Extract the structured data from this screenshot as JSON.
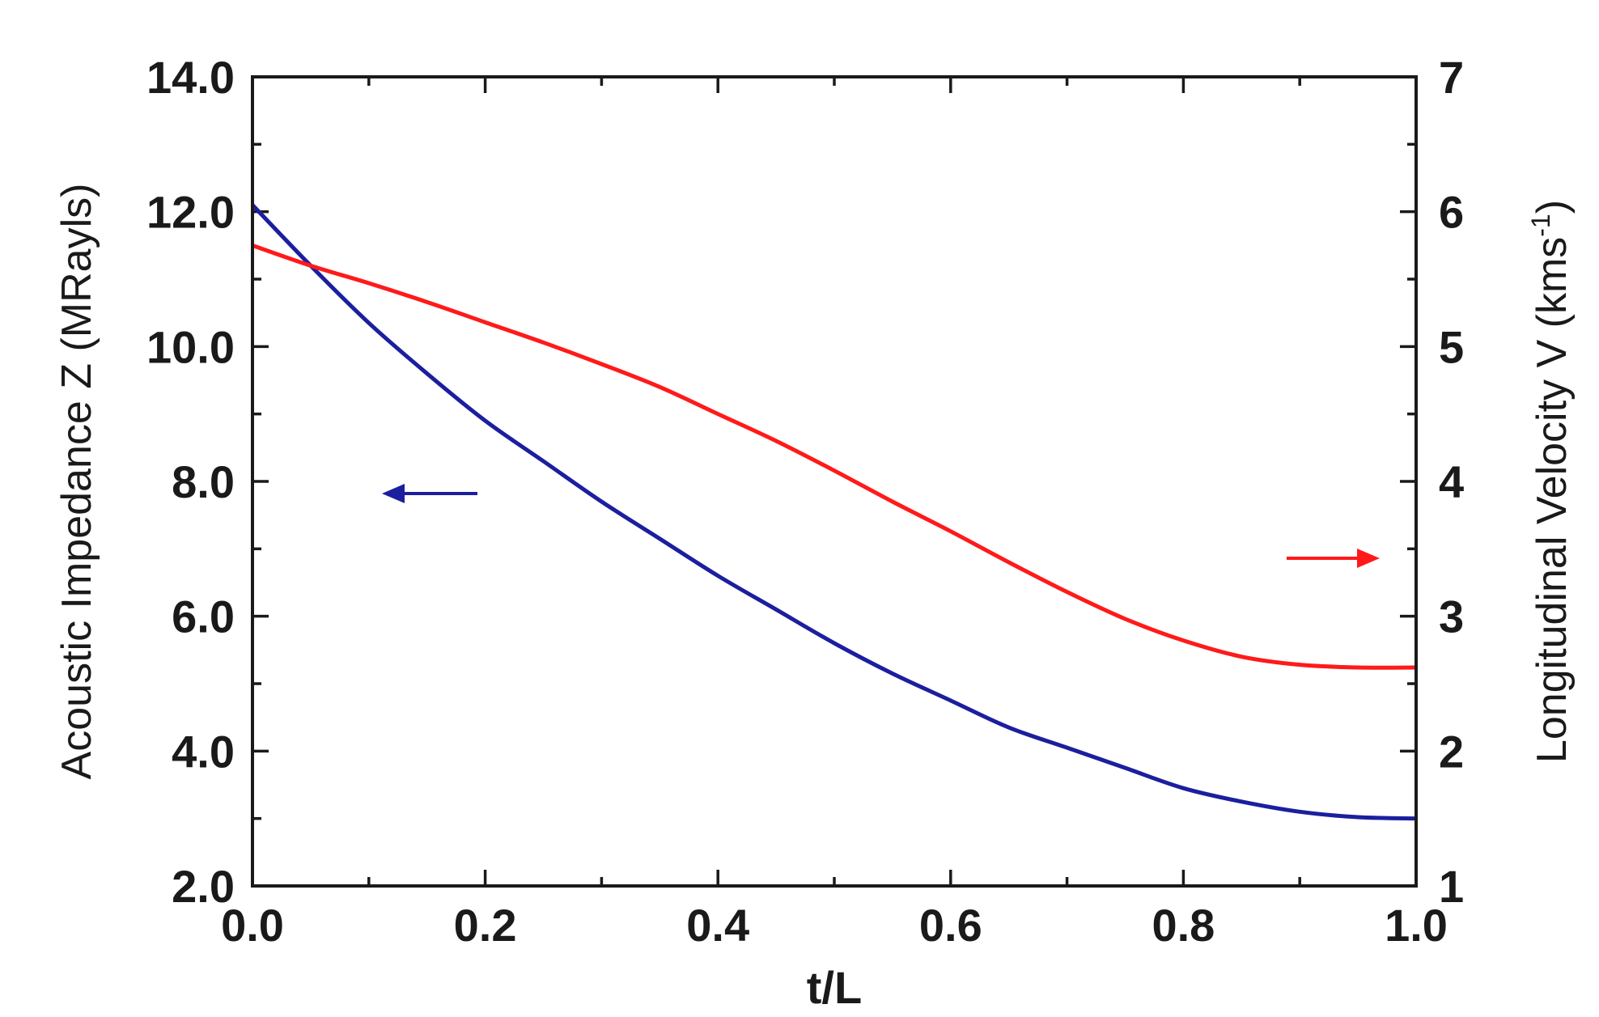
{
  "chart_data": {
    "type": "line",
    "xlabel": "t/L",
    "ylabel_left": "Acoustic Impedance Z (MRayls)",
    "ylabel_right_main": "Longitudinal Velocity V (kms",
    "ylabel_right_sup": "-1",
    "ylabel_right_close": ")",
    "xlim": [
      0.0,
      1.0
    ],
    "ylim_left": [
      2.0,
      14.0
    ],
    "ylim_right": [
      1,
      7
    ],
    "x_ticks": [
      "0.0",
      "0.2",
      "0.4",
      "0.6",
      "0.8",
      "1.0"
    ],
    "y_left_ticks": [
      "2.0",
      "4.0",
      "6.0",
      "8.0",
      "10.0",
      "12.0",
      "14.0"
    ],
    "y_right_ticks": [
      "1",
      "2",
      "3",
      "4",
      "5",
      "6",
      "7"
    ],
    "grid": false,
    "series": [
      {
        "axis": "left",
        "color": "#1b1f9e",
        "x": [
          0.0,
          0.05,
          0.1,
          0.15,
          0.2,
          0.25,
          0.3,
          0.35,
          0.4,
          0.45,
          0.5,
          0.55,
          0.6,
          0.65,
          0.7,
          0.75,
          0.8,
          0.85,
          0.9,
          0.95,
          1.0
        ],
        "values": [
          12.1,
          11.2,
          10.35,
          9.6,
          8.9,
          8.3,
          7.7,
          7.15,
          6.6,
          6.1,
          5.6,
          5.15,
          4.75,
          4.35,
          4.05,
          3.75,
          3.45,
          3.25,
          3.1,
          3.02,
          3.0
        ]
      },
      {
        "axis": "right",
        "color": "#ff1a1a",
        "x": [
          0.0,
          0.05,
          0.1,
          0.15,
          0.2,
          0.25,
          0.3,
          0.35,
          0.4,
          0.45,
          0.5,
          0.55,
          0.6,
          0.65,
          0.7,
          0.75,
          0.8,
          0.85,
          0.9,
          0.95,
          1.0
        ],
        "values": [
          5.75,
          5.6,
          5.47,
          5.33,
          5.18,
          5.03,
          4.87,
          4.7,
          4.5,
          4.3,
          4.08,
          3.85,
          3.63,
          3.4,
          3.18,
          2.98,
          2.82,
          2.7,
          2.64,
          2.62,
          2.62
        ]
      }
    ],
    "annotations": [
      {
        "type": "arrow",
        "direction": "left",
        "color": "#1b1f9e",
        "near": "blue-curve"
      },
      {
        "type": "arrow",
        "direction": "right",
        "color": "#ff1a1a",
        "near": "red-curve"
      }
    ]
  }
}
